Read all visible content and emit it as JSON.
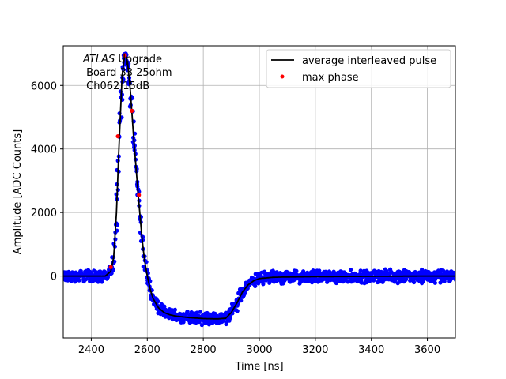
{
  "chart_data": {
    "type": "scatter",
    "title": "",
    "xlabel": "Time [ns]",
    "ylabel": "Amplitude [ADC Counts]",
    "xlim": [
      2300,
      3700
    ],
    "ylim": [
      -1950,
      7250
    ],
    "xticks": [
      2400,
      2600,
      2800,
      3000,
      3200,
      3400,
      3600
    ],
    "yticks": [
      0,
      2000,
      4000,
      6000
    ],
    "grid": true,
    "legend_position": "top-right",
    "annotation": {
      "italic": "ATLAS",
      "rest": " Upgrade",
      "line2": " Board 33 25ohm",
      "line3": " Ch062 15dB"
    },
    "series": [
      {
        "name": "average interleaved pulse",
        "style": "line",
        "color": "#000000",
        "x": [
          2300,
          2450,
          2470,
          2480,
          2490,
          2500,
          2510,
          2520,
          2530,
          2540,
          2550,
          2560,
          2570,
          2580,
          2590,
          2600,
          2610,
          2620,
          2640,
          2660,
          2680,
          2700,
          2750,
          2800,
          2850,
          2880,
          2900,
          2920,
          2940,
          2960,
          2980,
          3000,
          3050,
          3100,
          3200,
          3400,
          3600,
          3700
        ],
        "y": [
          0,
          0,
          150,
          600,
          2000,
          4300,
          6300,
          7000,
          6700,
          5800,
          4500,
          3400,
          2300,
          1300,
          500,
          0,
          -400,
          -700,
          -1000,
          -1150,
          -1220,
          -1260,
          -1310,
          -1340,
          -1350,
          -1330,
          -1150,
          -850,
          -500,
          -280,
          -150,
          -80,
          -40,
          -30,
          -20,
          -10,
          0,
          0
        ]
      },
      {
        "name": "max phase",
        "style": "points",
        "color": "#ff0000",
        "x": [
          2470,
          2495,
          2520,
          2545,
          2570
        ],
        "y": [
          280,
          4400,
          6950,
          5200,
          2550
        ]
      }
    ],
    "scatter_color": "#0000ff"
  }
}
